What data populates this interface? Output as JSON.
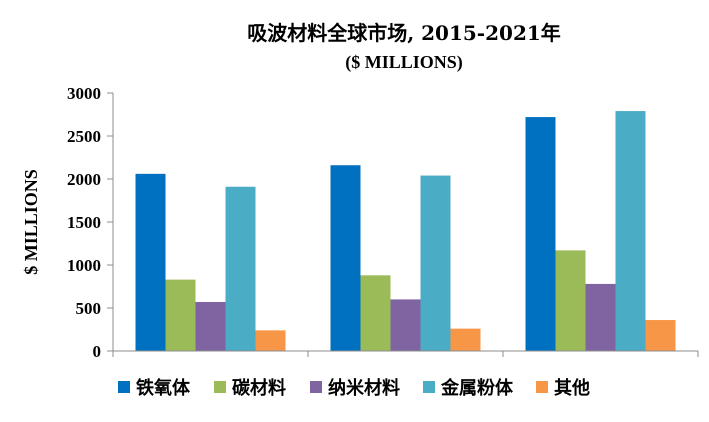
{
  "chart_data": {
    "type": "bar",
    "title": "吸波材料全球市场, 2015-2021年",
    "subtitle": "($ MILLIONS)",
    "xlabel": "",
    "ylabel": "$ MILLIONS",
    "ylim": [
      0,
      3000
    ],
    "yticks": [
      "0",
      "500",
      "1000",
      "1500",
      "2000",
      "2500",
      "3000"
    ],
    "categories": [
      "",
      "",
      ""
    ],
    "legend_position": "bottom",
    "grid": false,
    "series": [
      {
        "name": "铁氧体",
        "color": "#0070c0",
        "values": [
          2060,
          2160,
          2720
        ]
      },
      {
        "name": "碳材料",
        "color": "#9bbb59",
        "values": [
          830,
          880,
          1170
        ]
      },
      {
        "name": "纳米材料",
        "color": "#8064a2",
        "values": [
          570,
          600,
          780
        ]
      },
      {
        "name": "金属粉体",
        "color": "#4bacc6",
        "values": [
          1910,
          2040,
          2790
        ]
      },
      {
        "name": "其他",
        "color": "#f79646",
        "values": [
          240,
          260,
          360
        ]
      }
    ]
  }
}
